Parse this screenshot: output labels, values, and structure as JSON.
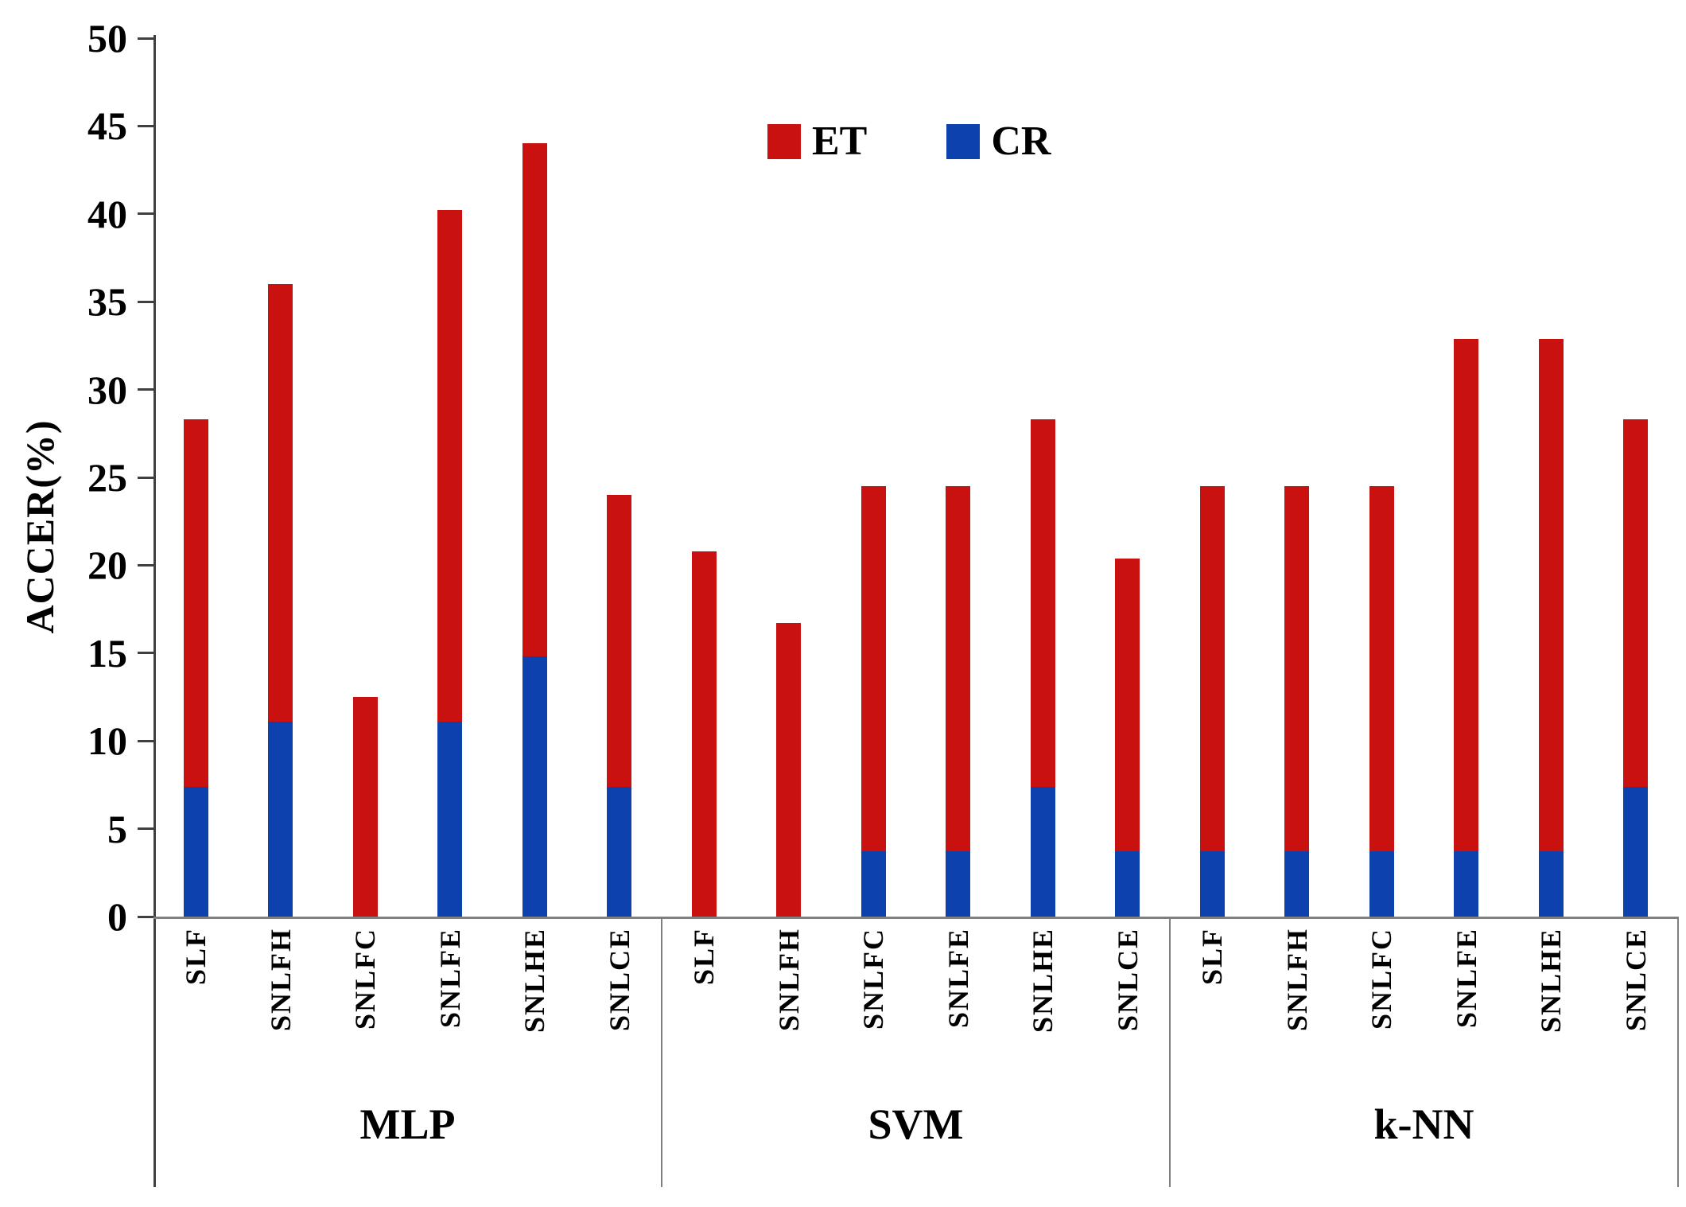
{
  "figure": {
    "background": "#ffffff",
    "y_axis_title": "ACCER(%)"
  },
  "legend": {
    "items": [
      {
        "label": "ET",
        "color": "#C9110F"
      },
      {
        "label": "CR",
        "color": "#0D42AE"
      }
    ]
  },
  "chart_data": {
    "type": "bar",
    "stacked": true,
    "title": "",
    "xlabel": "",
    "ylabel": "ACCER(%)",
    "ylim": [
      0,
      50
    ],
    "ytick_step": 5,
    "grid": false,
    "legend_position": "top-center",
    "groups": [
      "MLP",
      "SVM",
      "k-NN"
    ],
    "categories": [
      "SLF",
      "SNLFH",
      "SNLFC",
      "SNLFE",
      "SNLHE",
      "SNLCE"
    ],
    "series": [
      {
        "name": "ET",
        "color": "#C9110F",
        "values": [
          [
            20.9,
            24.9,
            12.5,
            29.1,
            29.2,
            16.6
          ],
          [
            20.8,
            16.7,
            20.8,
            20.8,
            20.9,
            16.7
          ],
          [
            20.8,
            20.8,
            20.8,
            29.2,
            29.2,
            20.9
          ]
        ]
      },
      {
        "name": "CR",
        "color": "#0D42AE",
        "values": [
          [
            7.4,
            11.1,
            0,
            11.1,
            14.8,
            7.4
          ],
          [
            0,
            0,
            3.7,
            3.7,
            7.4,
            3.7
          ],
          [
            3.7,
            3.7,
            3.7,
            3.7,
            3.7,
            7.4
          ]
        ]
      }
    ],
    "stack_totals": [
      [
        28.3,
        36.0,
        12.5,
        40.2,
        44.0,
        24.0
      ],
      [
        20.8,
        16.7,
        24.5,
        24.5,
        28.3,
        20.4
      ],
      [
        24.5,
        24.5,
        24.5,
        32.9,
        32.9,
        28.3
      ]
    ]
  }
}
